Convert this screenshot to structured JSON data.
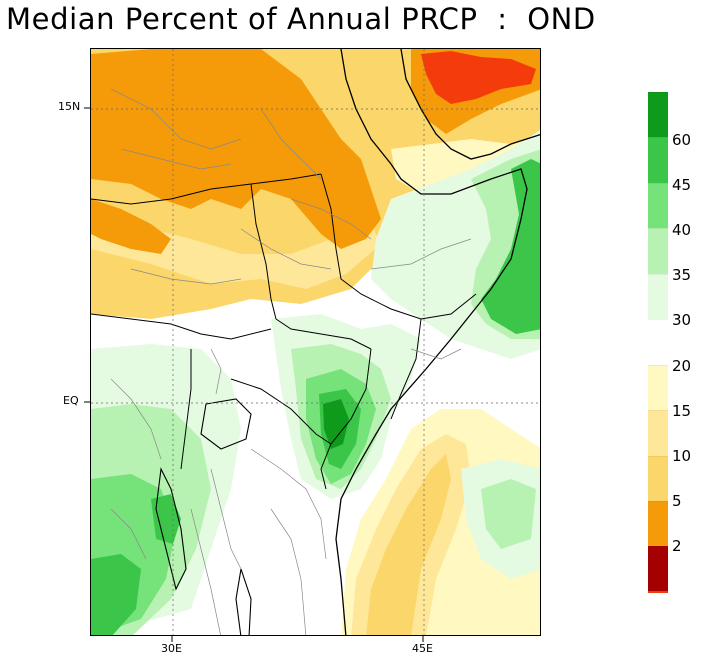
{
  "title": "Median Percent of Annual PRCP  :  OND",
  "map": {
    "lat_labels": [
      "15N",
      "EQ"
    ],
    "lon_labels": [
      "30E",
      "45E"
    ]
  },
  "legend": {
    "colors": {
      "green_darkest": "#0e9b1b",
      "green_dark": "#3bc64a",
      "green_mid": "#76e27a",
      "green_light": "#b7f2b2",
      "green_pale": "#e4fbe2",
      "yellow_pale": "#fff8c0",
      "yellow_light": "#ffe79a",
      "yellow": "#fbd66a",
      "orange": "#f59b0a",
      "red_orange": "#f43b0c",
      "dark_red": "#a40000"
    },
    "labels": [
      "60",
      "45",
      "40",
      "35",
      "30",
      "20",
      "15",
      "10",
      "5",
      "2"
    ]
  }
}
